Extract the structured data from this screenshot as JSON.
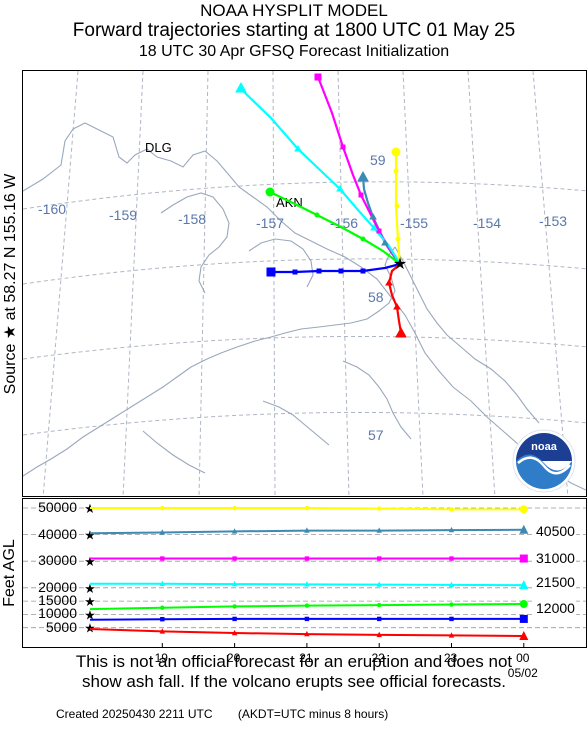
{
  "header": {
    "line1": "NOAA HYSPLIT MODEL",
    "line2": "Forward trajectories starting at 1800 UTC 01 May 25",
    "line3": "18 UTC 30 Apr    GFSQ  Forecast Initialization"
  },
  "source_label": "Source ★ at    58.27 N  155.16 W",
  "map": {
    "place_labels": [
      {
        "name": "DLG"
      },
      {
        "name": "AKN"
      }
    ],
    "lon_labels": [
      "-160",
      "-159",
      "-158",
      "-157",
      "-156",
      "-155",
      "-154",
      "-153"
    ],
    "lat_labels": [
      "59",
      "58",
      "57"
    ],
    "logo_text": "noaa",
    "colors": {
      "land_outline": "#9aa8bc",
      "grid": "#b0b6c4",
      "lon_lat_label": "#5a78aa"
    }
  },
  "altitude_panel": {
    "ylabel": "Feet AGL",
    "y_ticks": [
      "50000",
      "40000",
      "30000",
      "20000",
      "15000",
      "10000",
      "5000"
    ],
    "x_ticks": [
      "19",
      "20",
      "21",
      "22",
      "23",
      "00"
    ],
    "x_sublabel": "05/02",
    "right_labels": [
      "40500",
      "31000",
      "21500",
      "12000"
    ]
  },
  "chart_data": {
    "type": "line",
    "xlabel": "",
    "ylabel": "Feet AGL",
    "x": [
      "18",
      "19",
      "20",
      "21",
      "22",
      "23",
      "00"
    ],
    "series": [
      {
        "color": "#ffff00",
        "marker": "circle",
        "values": [
          50000,
          50000,
          50000,
          50000,
          49800,
          49500,
          49500
        ]
      },
      {
        "color": "#3d8ab3",
        "marker": "triangle",
        "values": [
          40500,
          40800,
          41200,
          41500,
          41500,
          41700,
          41800
        ]
      },
      {
        "color": "#ff00ff",
        "marker": "square",
        "values": [
          31000,
          31000,
          31000,
          31000,
          31000,
          31000,
          31000
        ]
      },
      {
        "color": "#00ffff",
        "marker": "triangle",
        "values": [
          21500,
          21500,
          21400,
          21300,
          21200,
          21100,
          21000
        ]
      },
      {
        "color": "#00ff00",
        "marker": "circle",
        "values": [
          12000,
          12500,
          13000,
          13300,
          13500,
          13700,
          13900
        ]
      },
      {
        "color": "#0000ff",
        "marker": "square",
        "values": [
          8000,
          8200,
          8300,
          8300,
          8300,
          8300,
          8300
        ]
      },
      {
        "color": "#ff0000",
        "marker": "triangle",
        "values": [
          4500,
          3600,
          3000,
          2600,
          2300,
          2100,
          1900
        ]
      }
    ]
  },
  "disclaimer": {
    "line1": "This is not an official forecast for an eruption and does not",
    "line2": "show ash fall. If the volcano erupts see official forecasts."
  },
  "footer": {
    "created": "Created 20250430 2211 UTC",
    "note": "(AKDT=UTC minus 8 hours)"
  }
}
